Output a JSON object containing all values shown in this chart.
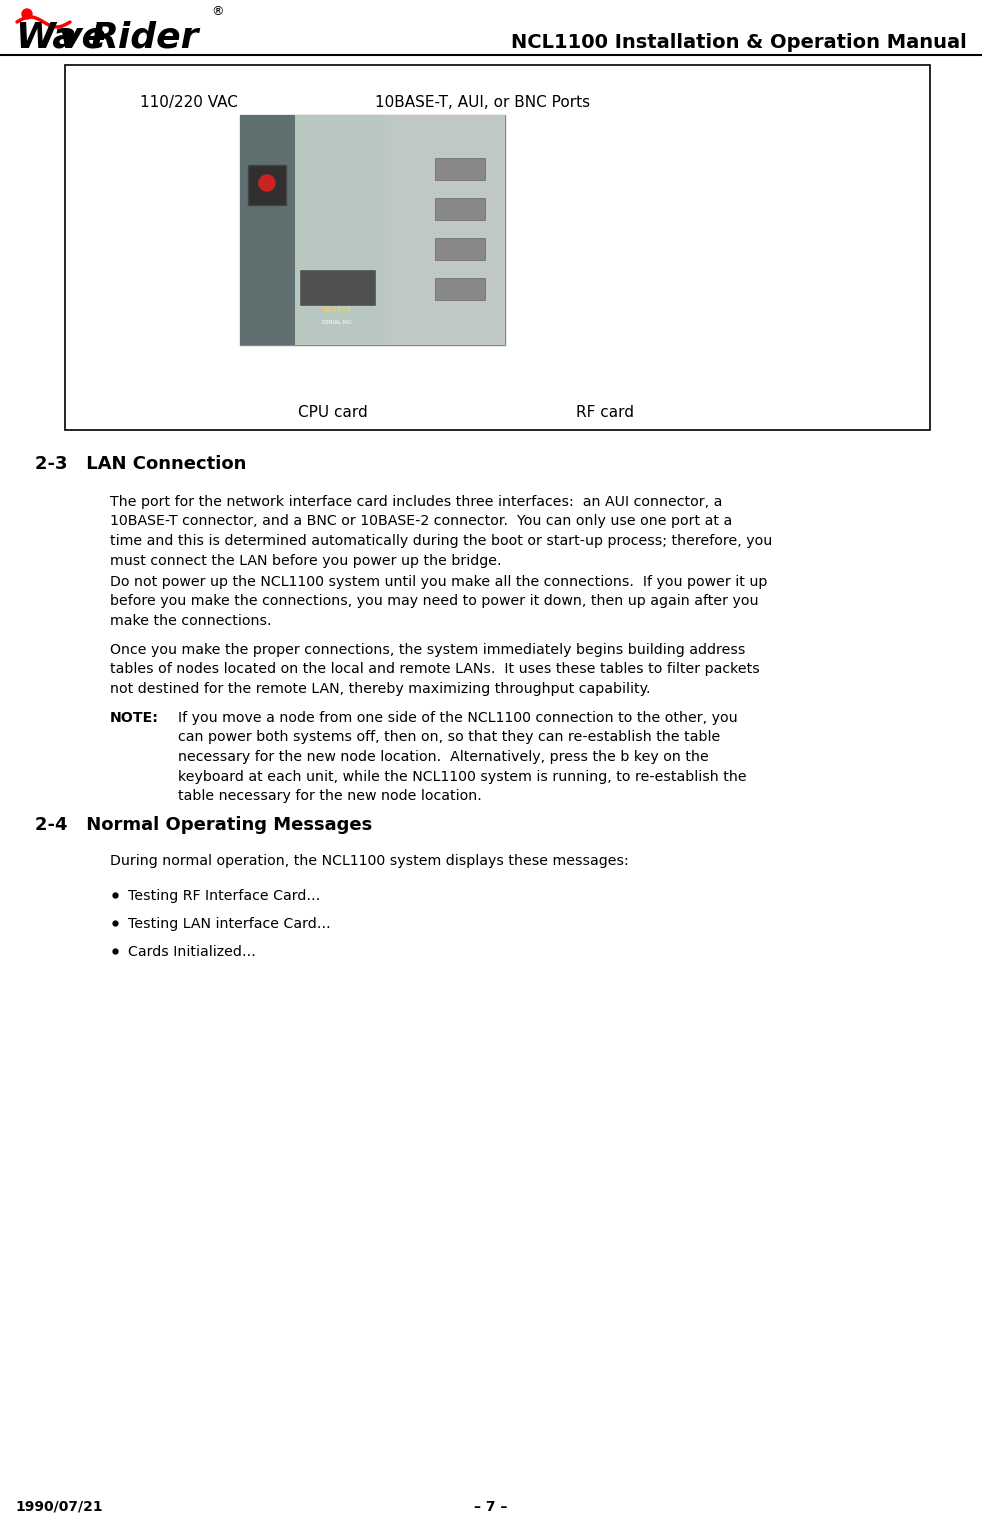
{
  "page_title": "NCL1100 Installation & Operation Manual",
  "logo_text_wave": "Wa",
  "logo_text_ve": "ve",
  "logo_text_rider": "Rider",
  "date": "1990/07/21",
  "page_num": "– 7 –",
  "box_label_left": "110/220 VAC",
  "box_label_right": "10BASE-T, AUI, or BNC Ports",
  "box_caption_left": "CPU card",
  "box_caption_right": "RF card",
  "section_23_title": "2-3   LAN Connection",
  "section_23_body1": "The port for the network interface card includes three interfaces:  an AUI connector, a\n10BASE-T connector, and a BNC or 10BASE-2 connector.  You can only use one port at a\ntime and this is determined automatically during the boot or start-up process; therefore, you\nmust connect the LAN before you power up the bridge.",
  "section_23_body2": "Do not power up the NCL1100 system until you make all the connections.  If you power it up\nbefore you make the connections, you may need to power it down, then up again after you\nmake the connections.",
  "section_23_body3": "Once you make the proper connections, the system immediately begins building address\ntables of nodes located on the local and remote LANs.  It uses these tables to filter packets\nnot destined for the remote LAN, thereby maximizing throughput capability.",
  "note_label": "NOTE:",
  "note_body": "If you move a node from one side of the NCL1100 connection to the other, you\ncan power both systems off, then on, so that they can re-establish the table\nnecessary for the new node location.  Alternatively, press the b key on the\nkeyboard at each unit, while the NCL1100 system is running, to re-establish the\ntable necessary for the new node location.",
  "section_24_title": "2-4   Normal Operating Messages",
  "section_24_body": "During normal operation, the NCL1100 system displays these messages:",
  "bullet1": "Testing RF Interface Card…",
  "bullet2": "Testing LAN interface Card…",
  "bullet3": "Cards Initialized…",
  "bg_color": "#ffffff",
  "text_color": "#000000",
  "box_border_color": "#000000",
  "title_font_size": 14,
  "body_font_size": 10.5,
  "section_title_font_size": 13
}
